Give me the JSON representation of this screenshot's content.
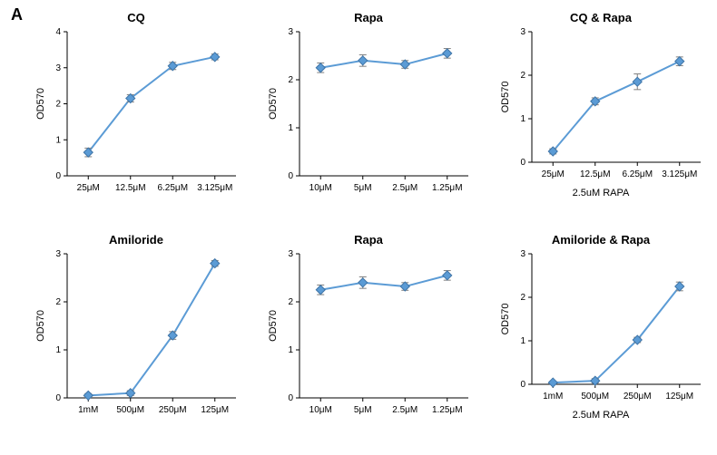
{
  "panel_letter": "A",
  "global": {
    "line_color": "#5b9bd5",
    "marker_color": "#5b9bd5",
    "marker_edge": "#3f74a6",
    "bar_err_color": "#7f7f7f",
    "axis_color": "#000000",
    "grid_background": "#ffffff",
    "title_fontsize": 13,
    "axis_fontsize": 11,
    "tick_fontsize": 10,
    "marker_size": 5,
    "line_width": 2,
    "err_cap": 4
  },
  "charts": [
    {
      "id": "cq",
      "title": "CQ",
      "ylabel": "OD570",
      "sub_xlabel": "",
      "ylim": [
        0,
        4
      ],
      "ytick_step": 1,
      "x_categories": [
        "25μM",
        "12.5μM",
        "6.25μM",
        "3.125μM"
      ],
      "values": [
        0.65,
        2.15,
        3.05,
        3.3
      ],
      "err": [
        0.12,
        0.1,
        0.1,
        0.08
      ]
    },
    {
      "id": "rapa_top",
      "title": "Rapa",
      "ylabel": "OD570",
      "sub_xlabel": "",
      "ylim": [
        0,
        3
      ],
      "ytick_step": 1,
      "x_categories": [
        "10μM",
        "5μM",
        "2.5μM",
        "1.25μM"
      ],
      "values": [
        2.25,
        2.4,
        2.32,
        2.55
      ],
      "err": [
        0.1,
        0.12,
        0.08,
        0.1
      ]
    },
    {
      "id": "cq_rapa",
      "title": "CQ & Rapa",
      "ylabel": "OD570",
      "sub_xlabel": "2.5uM RAPA",
      "ylim": [
        0,
        3
      ],
      "ytick_step": 1,
      "x_categories": [
        "25μM",
        "12.5μM",
        "6.25μM",
        "3.125μM"
      ],
      "values": [
        0.25,
        1.4,
        1.85,
        2.32
      ],
      "err": [
        0.06,
        0.08,
        0.18,
        0.1
      ]
    },
    {
      "id": "amiloride",
      "title": "Amiloride",
      "ylabel": "OD570",
      "sub_xlabel": "",
      "ylim": [
        0,
        3
      ],
      "ytick_step": 1,
      "x_categories": [
        "1mM",
        "500μM",
        "250μM",
        "125μM"
      ],
      "values": [
        0.05,
        0.1,
        1.3,
        2.8
      ],
      "err": [
        0.04,
        0.05,
        0.08,
        0.06
      ]
    },
    {
      "id": "rapa_bottom",
      "title": "Rapa",
      "ylabel": "OD570",
      "sub_xlabel": "",
      "ylim": [
        0,
        3
      ],
      "ytick_step": 1,
      "x_categories": [
        "10μM",
        "5μM",
        "2.5μM",
        "1.25μM"
      ],
      "values": [
        2.25,
        2.4,
        2.32,
        2.55
      ],
      "err": [
        0.1,
        0.12,
        0.08,
        0.1
      ]
    },
    {
      "id": "amiloride_rapa",
      "title": "Amiloride & Rapa",
      "ylabel": "OD570",
      "sub_xlabel": "2.5uM RAPA",
      "ylim": [
        0,
        3
      ],
      "ytick_step": 1,
      "x_categories": [
        "1mM",
        "500μM",
        "250μM",
        "125μM"
      ],
      "values": [
        0.04,
        0.08,
        1.02,
        2.25
      ],
      "err": [
        0.03,
        0.05,
        0.06,
        0.1
      ]
    }
  ]
}
